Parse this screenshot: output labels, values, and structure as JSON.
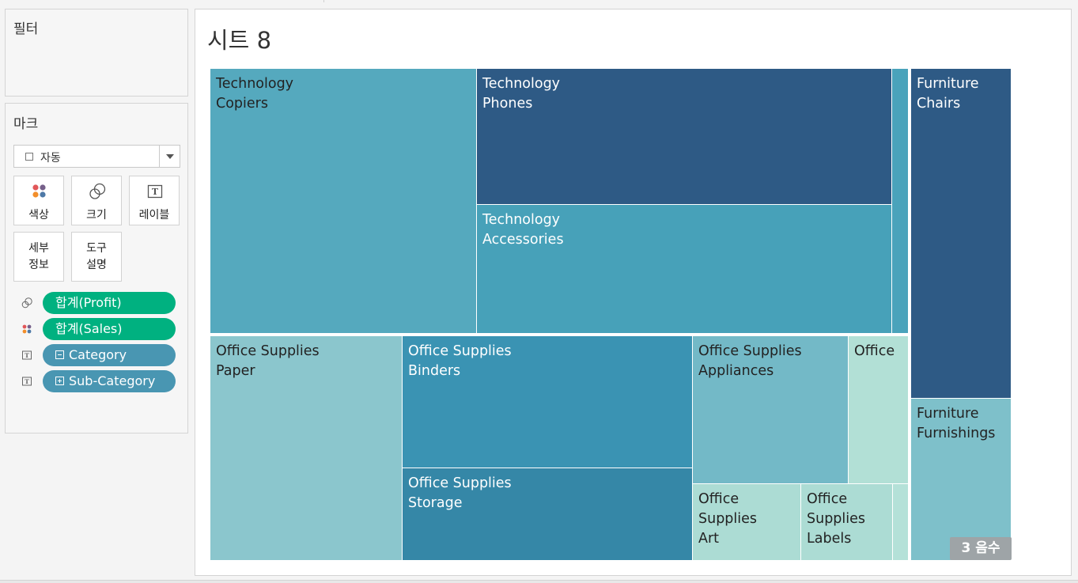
{
  "filters": {
    "title": "필터"
  },
  "marks": {
    "title": "마크",
    "mark_type": "자동",
    "buttons": {
      "color": "색상",
      "size": "크기",
      "label": "레이블",
      "detail_line1": "세부",
      "detail_line2": "정보",
      "tooltip_line1": "도구",
      "tooltip_line2": "설명"
    },
    "pills": [
      {
        "label": "합계(Profit)",
        "icon": "size-icon",
        "color": "#00b180"
      },
      {
        "label": "합계(Sales)",
        "icon": "color-icon",
        "color": "#00b180"
      },
      {
        "label": "Category",
        "icon": "label-icon",
        "prefix": "collapse",
        "color": "#4996b2"
      },
      {
        "label": "Sub-Category",
        "icon": "label-icon",
        "prefix": "expand",
        "color": "#4996b2"
      }
    ]
  },
  "sheet": {
    "title": "시트 8",
    "negative_badge": "3 음수"
  },
  "treemap": {
    "cells": [
      {
        "category": "Technology",
        "sub": "Copiers",
        "color": "#55a9be",
        "text": "light"
      },
      {
        "category": "Technology",
        "sub": "Phones",
        "color": "#2e5a85",
        "text": "dark"
      },
      {
        "category": "Technology",
        "sub": "Accessories",
        "color": "#47a1b9",
        "text": "dark"
      },
      {
        "category": "",
        "sub": "",
        "color": "#4aa3bb",
        "text": "dark"
      },
      {
        "category": "Furniture",
        "sub": "Chairs",
        "color": "#2e5a85",
        "text": "dark"
      },
      {
        "category": "Furniture",
        "sub": "Furnishings",
        "color": "#7ec0ca",
        "text": "light"
      },
      {
        "category": "Office Supplies",
        "sub": "Paper",
        "color": "#8bc6cd",
        "text": "light"
      },
      {
        "category": "Office Supplies",
        "sub": "Binders",
        "color": "#3a93b3",
        "text": "dark"
      },
      {
        "category": "Office Supplies",
        "sub": "Storage",
        "color": "#3587a7",
        "text": "dark"
      },
      {
        "category": "Office Supplies",
        "sub": "Appliances",
        "color": "#73b9c7",
        "text": "light"
      },
      {
        "category": "Office",
        "sub": "",
        "color": "#b2e0d6",
        "text": "light"
      },
      {
        "category": "Office",
        "sub": "Supplies",
        "sub2": "Art",
        "color": "#acdcd4",
        "text": "light"
      },
      {
        "category": "Office",
        "sub": "Supplies",
        "sub2": "Labels",
        "color": "#acdcd4",
        "text": "light"
      },
      {
        "category": "",
        "sub": "",
        "color": "#b4e1d8",
        "text": "light"
      }
    ]
  }
}
